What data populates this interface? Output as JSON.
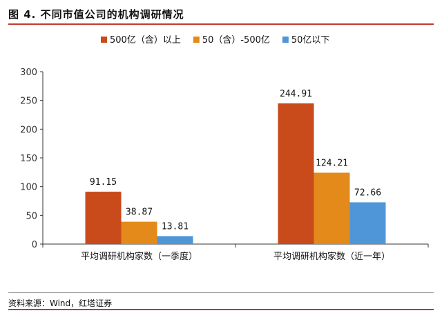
{
  "title": "图 4. 不同市值公司的机构调研情况",
  "source": "资料来源：Wind，红塔证券",
  "colors": {
    "accent": "#c0392b"
  },
  "chart_data": {
    "type": "bar",
    "categories": [
      "平均调研机构家数（一季度）",
      "平均调研机构家数（近一年）"
    ],
    "series": [
      {
        "name": "500亿（含）以上",
        "values": [
          91.15,
          244.91
        ],
        "labels": [
          "91.15",
          "244.91"
        ],
        "color": "#c94a1b"
      },
      {
        "name": "50（含）-500亿",
        "values": [
          38.87,
          124.21
        ],
        "labels": [
          "38.87",
          "124.21"
        ],
        "color": "#e38a1a"
      },
      {
        "name": "50亿以下",
        "values": [
          13.81,
          72.66
        ],
        "labels": [
          "13.81",
          "72.66"
        ],
        "color": "#4f96d9"
      }
    ],
    "ylim": [
      0,
      300
    ],
    "yticks": [
      0,
      50,
      100,
      150,
      200,
      250,
      300
    ],
    "grid": false,
    "legend": "top-center"
  }
}
